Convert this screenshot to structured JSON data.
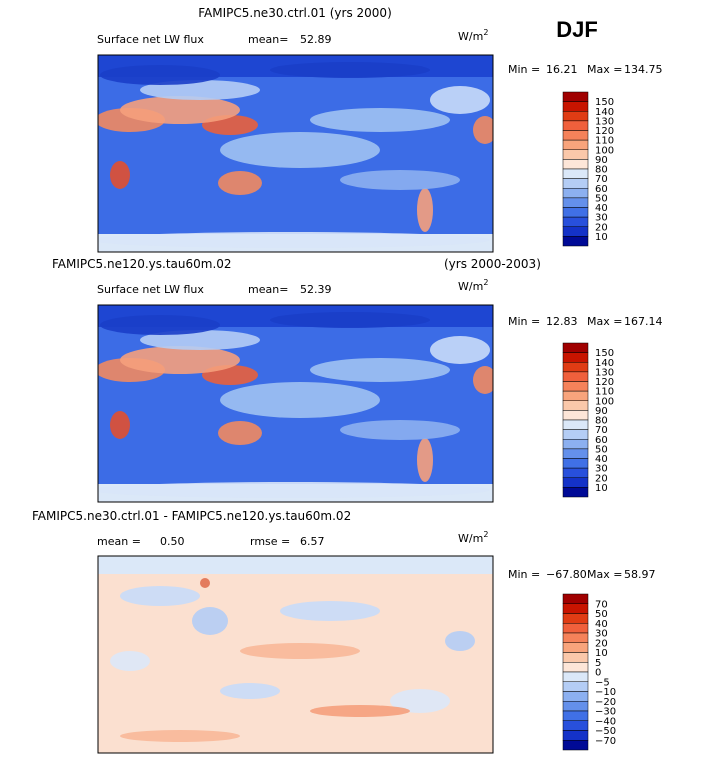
{
  "season": "DJF",
  "panels": [
    {
      "title": "FAMIPC5.ne30.ctrl.01 (yrs 2000)",
      "field": "Surface net LW flux",
      "mean_label": "mean=",
      "mean": "52.89",
      "units": {
        "base": "W/m",
        "sup": "2"
      },
      "min_label": "Min =",
      "min": "16.21",
      "max_label": "Max =",
      "max": "134.75",
      "colorbar": {
        "levels": [
          "150",
          "140",
          "130",
          "120",
          "110",
          "100",
          "90",
          "80",
          "70",
          "60",
          "50",
          "40",
          "30",
          "20",
          "10"
        ],
        "colors": [
          "#a00000",
          "#c81400",
          "#e03c14",
          "#f0603c",
          "#f5825a",
          "#f8a47c",
          "#fac8aa",
          "#fde6d8",
          "#dbe8f8",
          "#b4cdf5",
          "#8cb0f0",
          "#6490eb",
          "#4070e6",
          "#2850dc",
          "#1432c8",
          "#000a96"
        ]
      }
    },
    {
      "title": "FAMIPC5.ne120.ys.tau60m.02",
      "years": "(yrs 2000-2003)",
      "field": "Surface net LW flux",
      "mean_label": "mean=",
      "mean": "52.39",
      "units": {
        "base": "W/m",
        "sup": "2"
      },
      "min_label": "Min =",
      "min": "12.83",
      "max_label": "Max =",
      "max": "167.14",
      "colorbar": {
        "levels": [
          "150",
          "140",
          "130",
          "120",
          "110",
          "100",
          "90",
          "80",
          "70",
          "60",
          "50",
          "40",
          "30",
          "20",
          "10"
        ],
        "colors": [
          "#a00000",
          "#c81400",
          "#e03c14",
          "#f0603c",
          "#f5825a",
          "#f8a47c",
          "#fac8aa",
          "#fde6d8",
          "#dbe8f8",
          "#b4cdf5",
          "#8cb0f0",
          "#6490eb",
          "#4070e6",
          "#2850dc",
          "#1432c8",
          "#000a96"
        ]
      }
    },
    {
      "title": "FAMIPC5.ne30.ctrl.01 - FAMIPC5.ne120.ys.tau60m.02",
      "mean_label": "mean =",
      "mean": "0.50",
      "rmse_label": "rmse =",
      "rmse": "6.57",
      "units": {
        "base": "W/m",
        "sup": "2"
      },
      "min_label": "Min =",
      "min": "−67.80",
      "max_label": "Max =",
      "max": "58.97",
      "colorbar": {
        "levels": [
          "70",
          "50",
          "40",
          "30",
          "20",
          "10",
          "5",
          "0",
          "−5",
          "−10",
          "−20",
          "−30",
          "−40",
          "−50",
          "−70"
        ],
        "colors": [
          "#a00000",
          "#c81400",
          "#e03c14",
          "#f0603c",
          "#f5825a",
          "#f8a47c",
          "#fac8aa",
          "#fde6d8",
          "#dbe8f8",
          "#b4cdf5",
          "#8cb0f0",
          "#6490eb",
          "#4070e6",
          "#2850dc",
          "#1432c8",
          "#000a96"
        ]
      }
    }
  ]
}
